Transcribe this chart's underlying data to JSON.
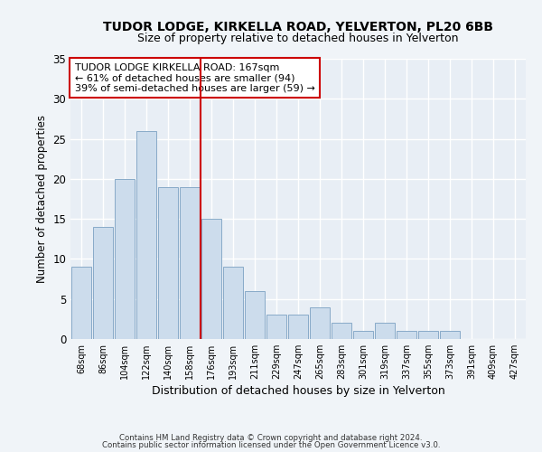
{
  "title1": "TUDOR LODGE, KIRKELLA ROAD, YELVERTON, PL20 6BB",
  "title2": "Size of property relative to detached houses in Yelverton",
  "xlabel": "Distribution of detached houses by size in Yelverton",
  "ylabel": "Number of detached properties",
  "categories": [
    "68sqm",
    "86sqm",
    "104sqm",
    "122sqm",
    "140sqm",
    "158sqm",
    "176sqm",
    "193sqm",
    "211sqm",
    "229sqm",
    "247sqm",
    "265sqm",
    "283sqm",
    "301sqm",
    "319sqm",
    "337sqm",
    "355sqm",
    "373sqm",
    "391sqm",
    "409sqm",
    "427sqm"
  ],
  "values": [
    9,
    14,
    20,
    26,
    19,
    19,
    15,
    9,
    6,
    3,
    3,
    4,
    2,
    1,
    2,
    1,
    1,
    1,
    0,
    0,
    0
  ],
  "bar_color": "#ccdcec",
  "bar_edge_color": "#88aac8",
  "vline_x": 5.5,
  "vline_color": "#cc0000",
  "annotation_line1": "TUDOR LODGE KIRKELLA ROAD: 167sqm",
  "annotation_line2": "← 61% of detached houses are smaller (94)",
  "annotation_line3": "39% of semi-detached houses are larger (59) →",
  "annotation_box_color": "#ffffff",
  "annotation_box_edge": "#cc0000",
  "ylim": [
    0,
    35
  ],
  "yticks": [
    0,
    5,
    10,
    15,
    20,
    25,
    30,
    35
  ],
  "footer1": "Contains HM Land Registry data © Crown copyright and database right 2024.",
  "footer2": "Contains public sector information licensed under the Open Government Licence v3.0.",
  "bg_color": "#f0f4f8",
  "plot_bg_color": "#e8eef5"
}
